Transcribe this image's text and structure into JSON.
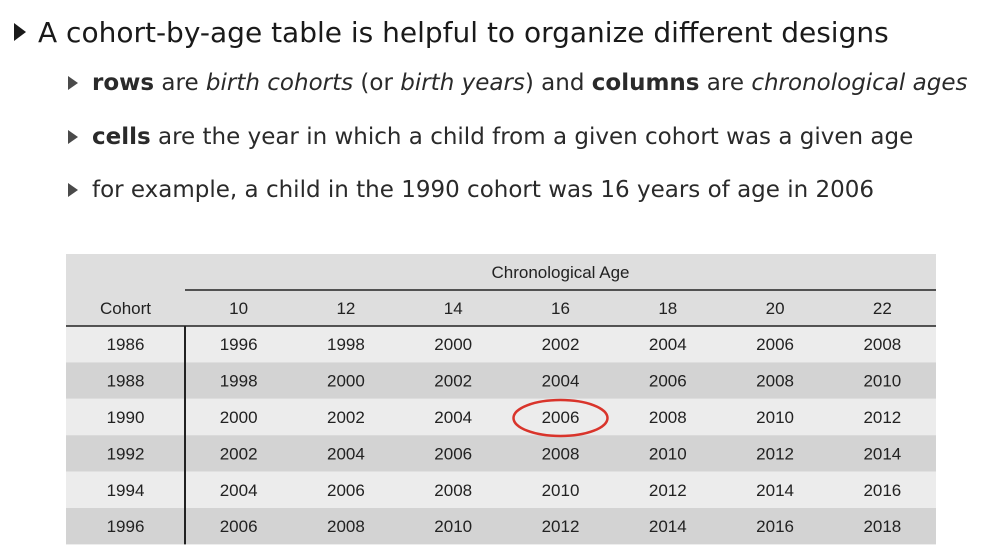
{
  "bullets": {
    "main": "A cohort-by-age table is helpful to organize different designs",
    "sub1": {
      "b1": "rows",
      "t1": " are ",
      "i1": "birth cohorts",
      "t2": " (or ",
      "i2": "birth years",
      "t3": ") and ",
      "b2": "columns",
      "t4": " are ",
      "i3": "chronological ages"
    },
    "sub2": {
      "b1": "cells",
      "t1": " are the year in which a child from a given cohort was a given age"
    },
    "sub3": {
      "t1": "for example, a child in the 1990 cohort was 16 years of age in 2006"
    }
  },
  "table": {
    "group_header": "Chronological Age",
    "cohort_header": "Cohort",
    "ages": [
      "10",
      "12",
      "14",
      "16",
      "18",
      "20",
      "22"
    ],
    "rows": [
      {
        "cohort": "1986",
        "years": [
          "1996",
          "1998",
          "2000",
          "2002",
          "2004",
          "2006",
          "2008"
        ]
      },
      {
        "cohort": "1988",
        "years": [
          "1998",
          "2000",
          "2002",
          "2004",
          "2006",
          "2008",
          "2010"
        ]
      },
      {
        "cohort": "1990",
        "years": [
          "2000",
          "2002",
          "2004",
          "2006",
          "2008",
          "2010",
          "2012"
        ]
      },
      {
        "cohort": "1992",
        "years": [
          "2002",
          "2004",
          "2006",
          "2008",
          "2010",
          "2012",
          "2014"
        ]
      },
      {
        "cohort": "1994",
        "years": [
          "2004",
          "2006",
          "2008",
          "2010",
          "2012",
          "2014",
          "2016"
        ]
      },
      {
        "cohort": "1996",
        "years": [
          "2006",
          "2008",
          "2010",
          "2012",
          "2014",
          "2016",
          "2018"
        ]
      }
    ],
    "highlight": {
      "row": 2,
      "col": 3,
      "color": "#d9342b"
    },
    "colors": {
      "light": "#ececec",
      "dark": "#d3d3d3",
      "header": "#dedede"
    }
  }
}
